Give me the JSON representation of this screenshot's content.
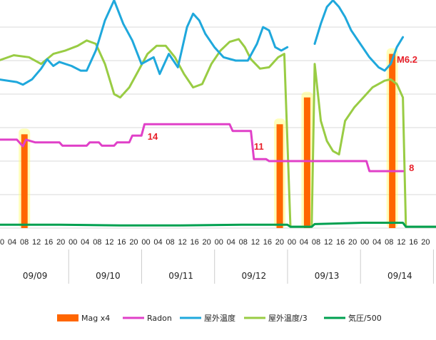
{
  "chart_data": {
    "type": "line",
    "x_unit": "hours since 09/09 00:00",
    "dates": [
      "09/09",
      "09/10",
      "09/11",
      "09/12",
      "09/13",
      "09/14"
    ],
    "hour_ticks": [
      "00",
      "04",
      "08",
      "12",
      "16",
      "20"
    ],
    "xlim": [
      0,
      144
    ],
    "grid": "horizontal",
    "legend_position": "bottom",
    "colors": {
      "mag": "#ff6600",
      "mag_glow": "#ffff66",
      "radon": "#e040c8",
      "outdoor_temp": "#1fa8dc",
      "outdoor_humidity": "#99cc44",
      "pressure": "#00a050",
      "annotation": "#e8202a"
    },
    "series": [
      {
        "name": "Mag x4",
        "key": "mag",
        "kind": "bar",
        "points": [
          {
            "x": 8.5,
            "y": 1.4
          },
          {
            "x": 92.5,
            "y": 1.55
          },
          {
            "x": 101.5,
            "y": 1.95
          },
          {
            "x": 129.5,
            "y": 2.6
          }
        ]
      },
      {
        "name": "Radon",
        "key": "radon",
        "kind": "line",
        "points": [
          [
            0,
            1.32
          ],
          [
            6,
            1.32
          ],
          [
            8,
            1.22
          ],
          [
            9,
            1.32
          ],
          [
            12,
            1.28
          ],
          [
            20,
            1.28
          ],
          [
            21,
            1.23
          ],
          [
            29,
            1.23
          ],
          [
            30,
            1.28
          ],
          [
            33,
            1.28
          ],
          [
            34,
            1.23
          ],
          [
            38,
            1.23
          ],
          [
            39,
            1.28
          ],
          [
            43,
            1.28
          ],
          [
            44,
            1.38
          ],
          [
            47,
            1.38
          ],
          [
            48,
            1.55
          ],
          [
            76,
            1.55
          ],
          [
            77,
            1.45
          ],
          [
            83,
            1.45
          ],
          [
            84,
            1.03
          ],
          [
            88,
            1.03
          ],
          [
            89,
            1.0
          ],
          [
            121,
            1.0
          ],
          [
            122,
            0.85
          ],
          [
            133,
            0.85
          ]
        ]
      },
      {
        "name": "屋外温度",
        "key": "outdoor_temp",
        "kind": "line",
        "points": [
          [
            0,
            2.22
          ],
          [
            6,
            2.18
          ],
          [
            8,
            2.14
          ],
          [
            11,
            2.22
          ],
          [
            14,
            2.38
          ],
          [
            16,
            2.52
          ],
          [
            18,
            2.42
          ],
          [
            20,
            2.48
          ],
          [
            24,
            2.42
          ],
          [
            27,
            2.35
          ],
          [
            29,
            2.35
          ],
          [
            32,
            2.65
          ],
          [
            35,
            3.1
          ],
          [
            38,
            3.4
          ],
          [
            41,
            3.05
          ],
          [
            44,
            2.8
          ],
          [
            47,
            2.45
          ],
          [
            49,
            2.5
          ],
          [
            51,
            2.55
          ],
          [
            53,
            2.3
          ],
          [
            56,
            2.6
          ],
          [
            59,
            2.4
          ],
          [
            62,
            3.0
          ],
          [
            64,
            3.2
          ],
          [
            66,
            3.1
          ],
          [
            68,
            2.9
          ],
          [
            71,
            2.7
          ],
          [
            74,
            2.55
          ],
          [
            78,
            2.5
          ],
          [
            82,
            2.5
          ],
          [
            85,
            2.75
          ],
          [
            87,
            3.0
          ],
          [
            89,
            2.95
          ],
          [
            91,
            2.7
          ],
          [
            93,
            2.65
          ],
          [
            95,
            2.7
          ]
        ]
      },
      {
        "name": "屋外温度",
        "key": "outdoor_temp_b",
        "kind": "line",
        "points": [
          [
            104,
            2.75
          ],
          [
            106,
            3.05
          ],
          [
            108,
            3.3
          ],
          [
            110,
            3.4
          ],
          [
            112,
            3.3
          ],
          [
            114,
            3.15
          ],
          [
            116,
            2.95
          ],
          [
            119,
            2.75
          ],
          [
            122,
            2.55
          ],
          [
            125,
            2.4
          ],
          [
            127,
            2.35
          ],
          [
            129,
            2.45
          ],
          [
            131,
            2.7
          ],
          [
            133,
            2.85
          ]
        ]
      },
      {
        "name": "屋外温度/3",
        "key": "outdoor_humidity",
        "kind": "line",
        "points": [
          [
            0,
            2.5
          ],
          [
            5,
            2.58
          ],
          [
            10,
            2.55
          ],
          [
            14,
            2.45
          ],
          [
            18,
            2.6
          ],
          [
            22,
            2.65
          ],
          [
            26,
            2.72
          ],
          [
            29,
            2.8
          ],
          [
            32,
            2.75
          ],
          [
            35,
            2.45
          ],
          [
            38,
            2.0
          ],
          [
            40,
            1.95
          ],
          [
            43,
            2.1
          ],
          [
            46,
            2.35
          ],
          [
            49,
            2.6
          ],
          [
            52,
            2.72
          ],
          [
            55,
            2.72
          ],
          [
            58,
            2.55
          ],
          [
            61,
            2.3
          ],
          [
            64,
            2.1
          ],
          [
            67,
            2.15
          ],
          [
            70,
            2.45
          ],
          [
            73,
            2.65
          ],
          [
            76,
            2.78
          ],
          [
            79,
            2.82
          ],
          [
            81,
            2.7
          ],
          [
            83,
            2.52
          ],
          [
            86,
            2.38
          ],
          [
            89,
            2.4
          ],
          [
            92,
            2.55
          ],
          [
            94,
            2.6
          ],
          [
            96,
            0.02
          ],
          [
            103,
            0.02
          ],
          [
            104,
            2.45
          ],
          [
            106,
            1.6
          ],
          [
            108,
            1.3
          ],
          [
            110,
            1.15
          ],
          [
            112,
            1.1
          ],
          [
            114,
            1.6
          ],
          [
            117,
            1.8
          ],
          [
            120,
            1.95
          ],
          [
            123,
            2.1
          ],
          [
            127,
            2.2
          ],
          [
            129,
            2.22
          ],
          [
            131,
            2.15
          ],
          [
            133,
            1.95
          ],
          [
            134,
            0.02
          ],
          [
            144,
            0.02
          ]
        ]
      },
      {
        "name": "気圧/500",
        "key": "pressure",
        "kind": "line",
        "points": [
          [
            0,
            0.05
          ],
          [
            20,
            0.05
          ],
          [
            40,
            0.04
          ],
          [
            60,
            0.04
          ],
          [
            80,
            0.05
          ],
          [
            95,
            0.05
          ],
          [
            96,
            0.02
          ],
          [
            103,
            0.02
          ],
          [
            104,
            0.06
          ],
          [
            120,
            0.08
          ],
          [
            133,
            0.08
          ],
          [
            134,
            0.02
          ],
          [
            144,
            0.02
          ]
        ]
      }
    ],
    "annotations": [
      {
        "text": "14",
        "x": 49,
        "y": 1.32
      },
      {
        "text": "11",
        "x": 84,
        "y": 1.17
      },
      {
        "text": "8",
        "x": 135,
        "y": 0.85
      },
      {
        "text": "M6.2",
        "x": 131,
        "y": 2.47
      }
    ],
    "legend": [
      {
        "label": "Mag x4",
        "key": "mag",
        "kind": "bar"
      },
      {
        "label": "Radon",
        "key": "radon",
        "kind": "line"
      },
      {
        "label": "屋外温度",
        "key": "outdoor_temp",
        "kind": "line"
      },
      {
        "label": "屋外温度/3",
        "key": "outdoor_humidity",
        "kind": "line"
      },
      {
        "label": "気圧/500",
        "key": "pressure",
        "kind": "line"
      }
    ]
  }
}
